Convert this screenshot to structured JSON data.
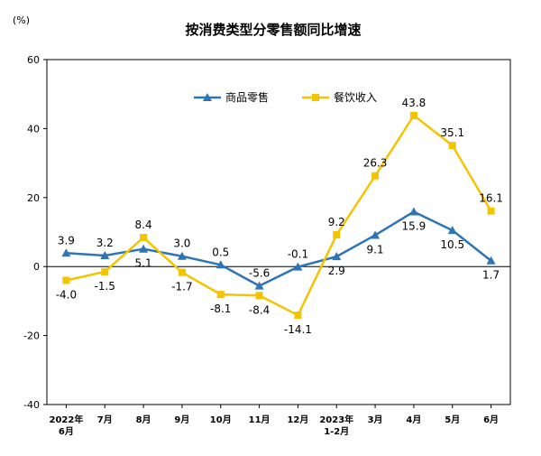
{
  "chart_data": {
    "type": "line",
    "title": "按消费类型分零售额同比增速",
    "unit": "(%)",
    "ylim": [
      -40,
      60
    ],
    "yticks": [
      -40,
      -20,
      0,
      20,
      40,
      60
    ],
    "categories": [
      [
        "2022年",
        "6月"
      ],
      [
        "7月"
      ],
      [
        "8月"
      ],
      [
        "9月"
      ],
      [
        "10月"
      ],
      [
        "11月"
      ],
      [
        "12月"
      ],
      [
        "2023年",
        "1-2月"
      ],
      [
        "3月"
      ],
      [
        "4月"
      ],
      [
        "5月"
      ],
      [
        "6月"
      ]
    ],
    "legend_position": "top-center",
    "series": [
      {
        "name": "商品零售",
        "color": "#2e75b6",
        "marker": "triangle",
        "values": [
          3.9,
          3.2,
          5.1,
          3.0,
          0.5,
          -5.6,
          -0.1,
          2.9,
          9.1,
          15.9,
          10.5,
          1.7
        ],
        "labels": [
          "3.9",
          "3.2",
          "5.1",
          "3.0",
          "0.5",
          "-5.6",
          "-0.1",
          "2.9",
          "9.1",
          "15.9",
          "10.5",
          "1.7"
        ]
      },
      {
        "name": "餐饮收入",
        "color": "#f5c400",
        "marker": "square",
        "values": [
          -4.0,
          -1.5,
          8.4,
          -1.7,
          -8.1,
          -8.4,
          -14.1,
          9.2,
          26.3,
          43.8,
          35.1,
          16.1
        ],
        "labels": [
          "-4.0",
          "-1.5",
          "8.4",
          "-1.7",
          "-8.1",
          "-8.4",
          "-14.1",
          "9.2",
          "26.3",
          "43.8",
          "35.1",
          "16.1"
        ]
      }
    ]
  }
}
